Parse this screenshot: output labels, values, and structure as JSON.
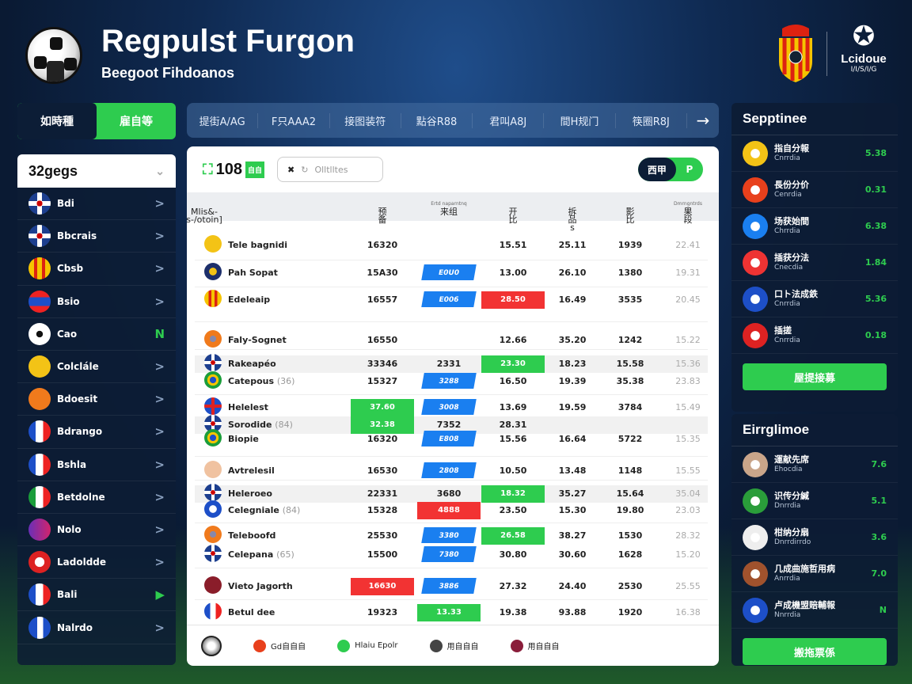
{
  "header": {
    "title": "Regpulst Furgon",
    "subtitle": "Beegoot Fihdoanos",
    "league_name": "Lcidoue",
    "league_sub": "I/I/S/I/G"
  },
  "mode_toggle": [
    "如時種",
    "雇自等"
  ],
  "top_nav": {
    "tabs": [
      "提街A/AG",
      "F只AAA2",
      "接图装符",
      "點谷R88",
      "君叫A8J",
      "間H规门",
      "筷圈R8J"
    ],
    "next_icon": "arrow-right-icon"
  },
  "sidebar": {
    "selector": "32gegs",
    "items": [
      {
        "label": "Bdi",
        "flag": "uk",
        "mark": ">"
      },
      {
        "label": "Bbcrais",
        "flag": "uk",
        "mark": ">"
      },
      {
        "label": "Cbsb",
        "flag": "crest-yellow",
        "mark": ">"
      },
      {
        "label": "Bsio",
        "flag": "red-blue",
        "mark": ">"
      },
      {
        "label": "Cao",
        "flag": "ball",
        "mark": "N",
        "active": true
      },
      {
        "label": "Colclále",
        "flag": "yellow",
        "mark": ">"
      },
      {
        "label": "Bdoesit",
        "flag": "orange",
        "mark": ">"
      },
      {
        "label": "Bdrango",
        "flag": "fr",
        "mark": ">"
      },
      {
        "label": "Bshla",
        "flag": "fr",
        "mark": ">"
      },
      {
        "label": "Betdolne",
        "flag": "it",
        "mark": ">"
      },
      {
        "label": "Nolo",
        "flag": "purple",
        "mark": ">"
      },
      {
        "label": "Ladoldde",
        "flag": "red-white",
        "mark": ">"
      },
      {
        "label": "Bali",
        "flag": "fr",
        "mark": "▶",
        "active": true
      },
      {
        "label": "Nalrdo",
        "flag": "fr-blue",
        "mark": ">"
      }
    ]
  },
  "main": {
    "count": "108",
    "count_badge": "自自",
    "search_placeholder": "Olltlltes",
    "toggle": [
      "西甲",
      "P"
    ],
    "columns": [
      {
        "label": "Mlis&-s-/otoin]"
      },
      {
        "label": "预备"
      },
      {
        "label": "来组",
        "sub": "Ertd naparntnq"
      },
      {
        "label": "开比"
      },
      {
        "label": "拆品s"
      },
      {
        "label": "影比"
      },
      {
        "label": "果段",
        "sub": "Dmrngntrds"
      }
    ],
    "rows": [
      {
        "name": "Tele bagnidi",
        "flag": "yellow",
        "cells": [
          "16320",
          "",
          "15.51",
          "25.11",
          "1939",
          "22.41"
        ]
      },
      {
        "name": "Pah Sopat",
        "flag": "navy",
        "cells": [
          "15A30",
          {
            "v": "E0U0",
            "c": "blue"
          },
          "13.00",
          "26.10",
          "1380",
          "19.31"
        ]
      },
      {
        "name": "Edeleaip",
        "flag": "stripes",
        "cells": [
          "16557",
          {
            "v": "E006",
            "c": "blue"
          },
          {
            "v": "28.50",
            "c": "red"
          },
          "16.49",
          "3535",
          "20.45"
        ]
      },
      {
        "name": "Faly-Sognet",
        "flag": "crest",
        "cells": [
          "16550",
          "",
          "12.66",
          "35.20",
          "1242",
          "15.22"
        ]
      },
      {
        "name": "Rakeapéo",
        "flag": "uk",
        "gray": true,
        "cells": [
          "33346",
          "2331",
          {
            "v": "23.30",
            "c": "green"
          },
          "18.23",
          "15.58",
          "15.36"
        ]
      },
      {
        "name": "Catepous",
        "suffix": "(36)",
        "flag": "brazil",
        "cells": [
          "15327",
          {
            "v": "3288",
            "c": "blue"
          },
          "16.50",
          "19.39",
          "35.38",
          "23.83"
        ]
      },
      {
        "name": "Helelest",
        "flag": "cross",
        "cells": [
          {
            "v": "37.60",
            "c": "green"
          },
          {
            "v": "3008",
            "c": "blue"
          },
          "13.69",
          "19.59",
          "3784",
          "15.49"
        ]
      },
      {
        "name": "Sorodide",
        "suffix": "(84)",
        "flag": "uk",
        "gray": true,
        "cells": [
          {
            "v": "32.38",
            "c": "green"
          },
          "7352",
          "28.31",
          "",
          "",
          ""
        ]
      },
      {
        "name": "Biopie",
        "flag": "brazil",
        "cells": [
          "16320",
          {
            "v": "E808",
            "c": "blue"
          },
          "15.56",
          "16.64",
          "5722",
          "15.35"
        ]
      },
      {
        "name": "Avtrelesil",
        "flag": "peach",
        "cells": [
          "16530",
          {
            "v": "2808",
            "c": "blue"
          },
          "10.50",
          "13.48",
          "1148",
          "15.55"
        ]
      },
      {
        "name": "Heleroeo",
        "flag": "uk",
        "gray": true,
        "cells": [
          "22331",
          "3680",
          {
            "v": "18.32",
            "c": "green"
          },
          "35.27",
          "15.64",
          "35.04"
        ]
      },
      {
        "name": "Celegniale",
        "suffix": "(84)",
        "flag": "blueball",
        "cells": [
          "15328",
          {
            "v": "4888",
            "c": "red"
          },
          "23.50",
          "15.30",
          "19.80",
          "23.03"
        ]
      },
      {
        "name": "Teleboofd",
        "flag": "crest",
        "cells": [
          "25530",
          {
            "v": "3380",
            "c": "blue"
          },
          {
            "v": "26.58",
            "c": "green"
          },
          "38.27",
          "1530",
          "28.32"
        ]
      },
      {
        "name": "Celepana",
        "suffix": "(65)",
        "flag": "uk",
        "cells": [
          "15500",
          {
            "v": "7380",
            "c": "blue"
          },
          "30.80",
          "30.60",
          "1628",
          "15.20"
        ]
      },
      {
        "name": "Vieto Jagorth",
        "flag": "maroon",
        "cells": [
          {
            "v": "16630",
            "c": "red"
          },
          {
            "v": "3886",
            "c": "blue"
          },
          "27.32",
          "24.40",
          "2530",
          "25.55"
        ]
      },
      {
        "name": "Betul dee",
        "flag": "fr",
        "cells": [
          "19323",
          {
            "v": "13.33",
            "c": "green"
          },
          "19.38",
          "93.88",
          "1920",
          "16.38"
        ]
      }
    ],
    "footer": [
      {
        "label": "Gd自自自",
        "color": "#e8401c"
      },
      {
        "label": "Hlaiu Epolr",
        "color": "#2ecc4f"
      },
      {
        "label": "用自自自",
        "color": "#444"
      },
      {
        "label": "用自自自",
        "color": "#8a1d3a"
      }
    ]
  },
  "right_top": {
    "title": "Sepptinee",
    "button": "屋提接募",
    "items": [
      {
        "name": "指自分報",
        "sub": "Cnrrdia",
        "value": "5.38",
        "av": "#f3c316"
      },
      {
        "name": "長份分价",
        "sub": "Cenrdia",
        "value": "0.31",
        "av": "#e8401c"
      },
      {
        "name": "场获始間",
        "sub": "Chrrdia",
        "value": "6.38",
        "av": "#1a7ff0"
      },
      {
        "name": "插获分法",
        "sub": "Cnecdia",
        "value": "1.84",
        "av": "#e33"
      },
      {
        "name": "口ト法成鉄",
        "sub": "Cnrrdia",
        "value": "5.36",
        "av": "#1d4fc8"
      },
      {
        "name": "插搓",
        "sub": "Cnrrdia",
        "value": "0.18",
        "av": "#d22"
      }
    ]
  },
  "right_bottom": {
    "title": "Eirrglimoe",
    "button": "搬拖票係",
    "items": [
      {
        "name": "運献先席",
        "sub": "Ehocdia",
        "value": "7.6",
        "av": "#c9a58a"
      },
      {
        "name": "识传分緘",
        "sub": "Dnrrdia",
        "value": "5.1",
        "av": "#2a9d3a"
      },
      {
        "name": "柑纳分扇",
        "sub": "Dnrrdirrdo",
        "value": "3.6",
        "av": "#eee"
      },
      {
        "name": "几成曲施哲用病",
        "sub": "Anrrdia",
        "value": "7.0",
        "av": "#a0522d"
      },
      {
        "name": "卢成機盟賠輔報",
        "sub": "Nnrrdia",
        "value": "N",
        "av": "#1d4fc8"
      }
    ]
  }
}
